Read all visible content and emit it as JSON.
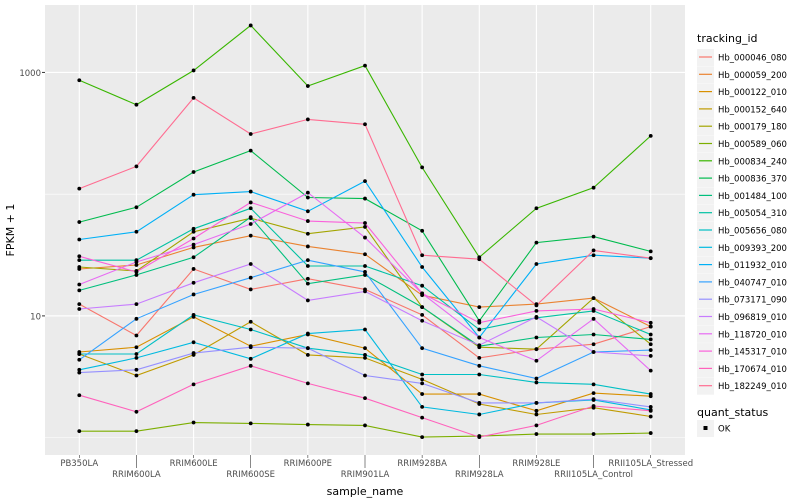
{
  "chart_data": {
    "type": "line",
    "xlabel": "sample_name",
    "ylabel": "FPKM + 1",
    "y_scale": "log10",
    "ylim": [
      0.72,
      3580
    ],
    "y_ticks": [
      10,
      1000
    ],
    "y_tick_labels": [
      "10",
      "1000"
    ],
    "grid": true,
    "background": "#EBEBEB",
    "legend_position": "right",
    "categories": [
      "PB350LA",
      "RRIM600LA",
      "RRIM600LE",
      "RRIM600SE",
      "RRIM600PE",
      "RRIM901LA",
      "RRIM928BA",
      "RRIM928LA",
      "RRIM928LE",
      "RRII105LA_Control",
      "RRII105LA_Stressed"
    ],
    "legend_title": "tracking_id",
    "series": [
      {
        "name": "Hb_000046_080",
        "color": "#F8766D",
        "values": [
          12.5,
          6.9,
          24.3,
          16.5,
          20.2,
          16.5,
          10.2,
          4.52,
          5.33,
          5.85,
          8.17
        ]
      },
      {
        "name": "Hb_000059_200",
        "color": "#EA8331",
        "values": [
          24.3,
          26.2,
          36.5,
          45.6,
          37.2,
          32.1,
          14.8,
          11.8,
          12.5,
          14.0,
          8.17
        ]
      },
      {
        "name": "Hb_000122_010",
        "color": "#D89000",
        "values": [
          5.05,
          5.53,
          9.82,
          5.64,
          7.03,
          5.43,
          2.28,
          2.28,
          1.66,
          2.32,
          2.19
        ]
      },
      {
        "name": "Hb_000152_640",
        "color": "#C09B00",
        "values": [
          4.86,
          3.24,
          4.78,
          8.95,
          4.78,
          4.52,
          3.01,
          1.89,
          1.55,
          1.76,
          1.49
        ]
      },
      {
        "name": "Hb_000179_180",
        "color": "#A3A500",
        "values": [
          25.2,
          23.4,
          49.1,
          63.5,
          47.3,
          53.8,
          11.8,
          5.53,
          5.33,
          14.0,
          5.85
        ]
      },
      {
        "name": "Hb_000589_060",
        "color": "#7CAE00",
        "values": [
          1.13,
          1.13,
          1.33,
          1.31,
          1.28,
          1.26,
          1.01,
          1.03,
          1.07,
          1.07,
          1.09
        ]
      },
      {
        "name": "Hb_000834_240",
        "color": "#39B600",
        "values": [
          863,
          543,
          1038,
          2432,
          773,
          1138,
          166,
          30.3,
          76.6,
          113,
          301
        ]
      },
      {
        "name": "Hb_000836_370",
        "color": "#00BB4E",
        "values": [
          59.0,
          78.0,
          152,
          228,
          93.8,
          92.0,
          50.0,
          9.12,
          40.0,
          44.8,
          33.9
        ]
      },
      {
        "name": "Hb_001484_100",
        "color": "#00BF7D",
        "values": [
          16.2,
          21.7,
          30.3,
          64.7,
          18.4,
          21.7,
          11.8,
          5.64,
          6.65,
          7.03,
          6.41
        ]
      },
      {
        "name": "Hb_005054_310",
        "color": "#00C1A3",
        "values": [
          28.7,
          28.7,
          51.9,
          76.6,
          25.7,
          25.7,
          17.7,
          7.73,
          9.64,
          11.0,
          7.03
        ]
      },
      {
        "name": "Hb_005656_080",
        "color": "#00BFC4",
        "values": [
          4.86,
          4.86,
          10.2,
          7.73,
          5.43,
          4.78,
          3.3,
          3.3,
          2.84,
          2.74,
          2.28
        ]
      },
      {
        "name": "Hb_009393_200",
        "color": "#00BAE0",
        "values": [
          3.61,
          4.52,
          6.07,
          4.44,
          7.16,
          7.73,
          1.79,
          1.55,
          1.93,
          2.04,
          1.69
        ]
      },
      {
        "name": "Hb_011932_010",
        "color": "#00B0F6",
        "values": [
          42.4,
          49.1,
          99,
          105,
          72.3,
          128,
          25.2,
          6.65,
          26.7,
          31.5,
          29.8
        ]
      },
      {
        "name": "Hb_040747_010",
        "color": "#35A2FF",
        "values": [
          4.36,
          9.46,
          15.0,
          20.6,
          28.7,
          23.0,
          5.43,
          3.89,
          3.06,
          5.05,
          5.24
        ]
      },
      {
        "name": "Hb_073171_090",
        "color": "#9590FF",
        "values": [
          3.42,
          3.61,
          4.95,
          5.53,
          5.43,
          3.24,
          2.79,
          1.93,
          1.93,
          2.07,
          1.79
        ]
      },
      {
        "name": "Hb_096819_010",
        "color": "#C77CFF",
        "values": [
          11.4,
          12.5,
          18.7,
          26.7,
          13.4,
          15.9,
          9.12,
          5.74,
          9.82,
          5.05,
          4.69
        ]
      },
      {
        "name": "Hb_118720_010",
        "color": "#E76BF3",
        "values": [
          18.1,
          27.7,
          38.5,
          56.9,
          103,
          44.0,
          15.3,
          6.65,
          4.28,
          9.46,
          3.55
        ]
      },
      {
        "name": "Hb_145317_010",
        "color": "#FA62DB",
        "values": [
          30.9,
          23.0,
          43.2,
          85.5,
          60.1,
          57.9,
          15.3,
          8.79,
          11.0,
          11.4,
          8.79
        ]
      },
      {
        "name": "Hb_170674_010",
        "color": "#FF62BC",
        "values": [
          2.23,
          1.63,
          2.74,
          3.89,
          2.79,
          2.11,
          1.46,
          1.01,
          1.26,
          1.82,
          1.66
        ]
      },
      {
        "name": "Hb_182249_010",
        "color": "#FF6C91",
        "values": [
          111,
          169,
          618,
          312,
          411,
          375,
          31.5,
          29.2,
          12.2,
          34.5,
          29.8
        ]
      }
    ],
    "point_legend_title": "quant_status",
    "point_legend_items": [
      "OK"
    ]
  }
}
